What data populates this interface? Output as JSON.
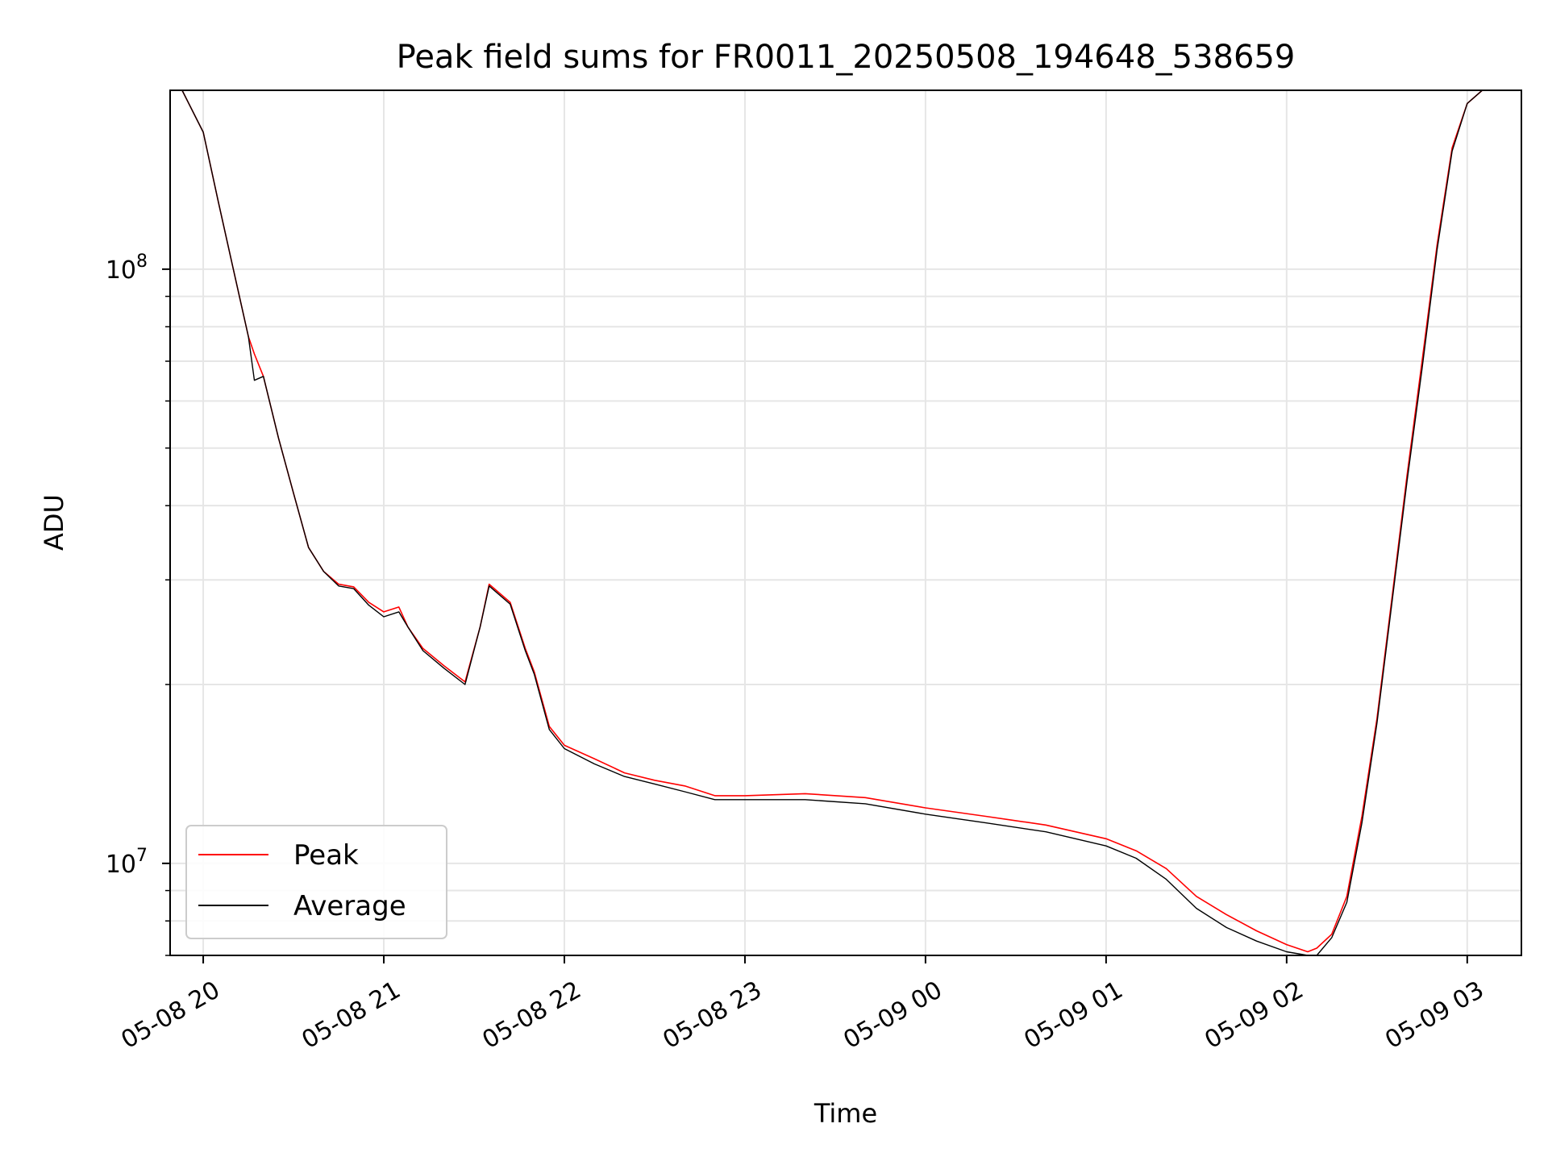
{
  "chart_data": {
    "type": "line",
    "title": "Peak field sums for FR0011_20250508_194648_538659",
    "xlabel": "Time",
    "ylabel": "ADU",
    "yscale": "log",
    "grid": true,
    "legend_position": "lower-left",
    "xlim": [
      "2025-05-08T19:49",
      "2025-05-09T03:18"
    ],
    "ylim": [
      7000000,
      200000000
    ],
    "x_ticks": [
      {
        "label": "05-08 20",
        "value": "2025-05-08T20:00"
      },
      {
        "label": "05-08 21",
        "value": "2025-05-08T21:00"
      },
      {
        "label": "05-08 22",
        "value": "2025-05-08T22:00"
      },
      {
        "label": "05-08 23",
        "value": "2025-05-08T23:00"
      },
      {
        "label": "05-09 00",
        "value": "2025-05-09T00:00"
      },
      {
        "label": "05-09 01",
        "value": "2025-05-09T01:00"
      },
      {
        "label": "05-09 02",
        "value": "2025-05-09T02:00"
      },
      {
        "label": "05-09 03",
        "value": "2025-05-09T03:00"
      }
    ],
    "y_ticks": [
      {
        "base": "10",
        "exp": "7",
        "value": 10000000
      },
      {
        "base": "10",
        "exp": "8",
        "value": 100000000
      }
    ],
    "y_minor_ticks": [
      7000000,
      8000000,
      9000000,
      20000000,
      30000000,
      40000000,
      50000000,
      60000000,
      70000000,
      80000000,
      90000000
    ],
    "series": [
      {
        "name": "Peak",
        "color": "#ff0000",
        "x": [
          "2025-05-08T19:53",
          "2025-05-08T20:00",
          "2025-05-08T20:05",
          "2025-05-08T20:10",
          "2025-05-08T20:15",
          "2025-05-08T20:17",
          "2025-05-08T20:20",
          "2025-05-08T20:25",
          "2025-05-08T20:30",
          "2025-05-08T20:35",
          "2025-05-08T20:40",
          "2025-05-08T20:45",
          "2025-05-08T20:50",
          "2025-05-08T20:55",
          "2025-05-08T21:00",
          "2025-05-08T21:05",
          "2025-05-08T21:08",
          "2025-05-08T21:13",
          "2025-05-08T21:20",
          "2025-05-08T21:27",
          "2025-05-08T21:32",
          "2025-05-08T21:35",
          "2025-05-08T21:42",
          "2025-05-08T21:47",
          "2025-05-08T21:50",
          "2025-05-08T21:55",
          "2025-05-08T22:00",
          "2025-05-08T22:10",
          "2025-05-08T22:20",
          "2025-05-08T22:30",
          "2025-05-08T22:40",
          "2025-05-08T22:50",
          "2025-05-08T23:00",
          "2025-05-08T23:20",
          "2025-05-08T23:40",
          "2025-05-09T00:00",
          "2025-05-09T00:20",
          "2025-05-09T00:40",
          "2025-05-09T01:00",
          "2025-05-09T01:10",
          "2025-05-09T01:20",
          "2025-05-09T01:30",
          "2025-05-09T01:40",
          "2025-05-09T01:50",
          "2025-05-09T02:00",
          "2025-05-09T02:07",
          "2025-05-09T02:10",
          "2025-05-09T02:15",
          "2025-05-09T02:20",
          "2025-05-09T02:25",
          "2025-05-09T02:30",
          "2025-05-09T02:35",
          "2025-05-09T02:40",
          "2025-05-09T02:45",
          "2025-05-09T02:50",
          "2025-05-09T02:55",
          "2025-05-09T03:00",
          "2025-05-09T03:05",
          "2025-05-09T03:10"
        ],
        "y": [
          200000000,
          170000000,
          130000000,
          100000000,
          77000000,
          72000000,
          66000000,
          52000000,
          42000000,
          34000000,
          31000000,
          29500000,
          29200000,
          27500000,
          26500000,
          27000000,
          25000000,
          23000000,
          21500000,
          20200000,
          25000000,
          29500000,
          27500000,
          23000000,
          21000000,
          17000000,
          15800000,
          15000000,
          14200000,
          13800000,
          13500000,
          13000000,
          13000000,
          13100000,
          12900000,
          12400000,
          12000000,
          11600000,
          11000000,
          10500000,
          9800000,
          8800000,
          8200000,
          7700000,
          7300000,
          7100000,
          7200000,
          7600000,
          8800000,
          12000000,
          17500000,
          28000000,
          45000000,
          70000000,
          110000000,
          160000000,
          190000000,
          200000000,
          200000000
        ]
      },
      {
        "name": "Average",
        "color": "#000000",
        "x": [
          "2025-05-08T19:53",
          "2025-05-08T20:00",
          "2025-05-08T20:05",
          "2025-05-08T20:10",
          "2025-05-08T20:15",
          "2025-05-08T20:17",
          "2025-05-08T20:20",
          "2025-05-08T20:25",
          "2025-05-08T20:30",
          "2025-05-08T20:35",
          "2025-05-08T20:40",
          "2025-05-08T20:45",
          "2025-05-08T20:50",
          "2025-05-08T20:55",
          "2025-05-08T21:00",
          "2025-05-08T21:05",
          "2025-05-08T21:08",
          "2025-05-08T21:13",
          "2025-05-08T21:20",
          "2025-05-08T21:27",
          "2025-05-08T21:32",
          "2025-05-08T21:35",
          "2025-05-08T21:42",
          "2025-05-08T21:47",
          "2025-05-08T21:50",
          "2025-05-08T21:55",
          "2025-05-08T22:00",
          "2025-05-08T22:10",
          "2025-05-08T22:20",
          "2025-05-08T22:30",
          "2025-05-08T22:40",
          "2025-05-08T22:50",
          "2025-05-08T23:00",
          "2025-05-08T23:20",
          "2025-05-08T23:40",
          "2025-05-09T00:00",
          "2025-05-09T00:20",
          "2025-05-09T00:40",
          "2025-05-09T01:00",
          "2025-05-09T01:10",
          "2025-05-09T01:20",
          "2025-05-09T01:30",
          "2025-05-09T01:40",
          "2025-05-09T01:50",
          "2025-05-09T02:00",
          "2025-05-09T02:07",
          "2025-05-09T02:10",
          "2025-05-09T02:15",
          "2025-05-09T02:20",
          "2025-05-09T02:25",
          "2025-05-09T02:30",
          "2025-05-09T02:35",
          "2025-05-09T02:40",
          "2025-05-09T02:45",
          "2025-05-09T02:50",
          "2025-05-09T02:55",
          "2025-05-09T03:00",
          "2025-05-09T03:05",
          "2025-05-09T03:10"
        ],
        "y": [
          200000000,
          170000000,
          130000000,
          100000000,
          77000000,
          65000000,
          66000000,
          52000000,
          42000000,
          34000000,
          31000000,
          29300000,
          29000000,
          27200000,
          26000000,
          26500000,
          25000000,
          22800000,
          21300000,
          20000000,
          25000000,
          29300000,
          27300000,
          22800000,
          20800000,
          16800000,
          15600000,
          14700000,
          14000000,
          13600000,
          13200000,
          12800000,
          12800000,
          12800000,
          12600000,
          12100000,
          11700000,
          11300000,
          10700000,
          10200000,
          9400000,
          8400000,
          7800000,
          7400000,
          7100000,
          6950000,
          7000000,
          7500000,
          8600000,
          11700000,
          17200000,
          27500000,
          44000000,
          68000000,
          108000000,
          158000000,
          190000000,
          200000000,
          200000000
        ]
      }
    ]
  }
}
